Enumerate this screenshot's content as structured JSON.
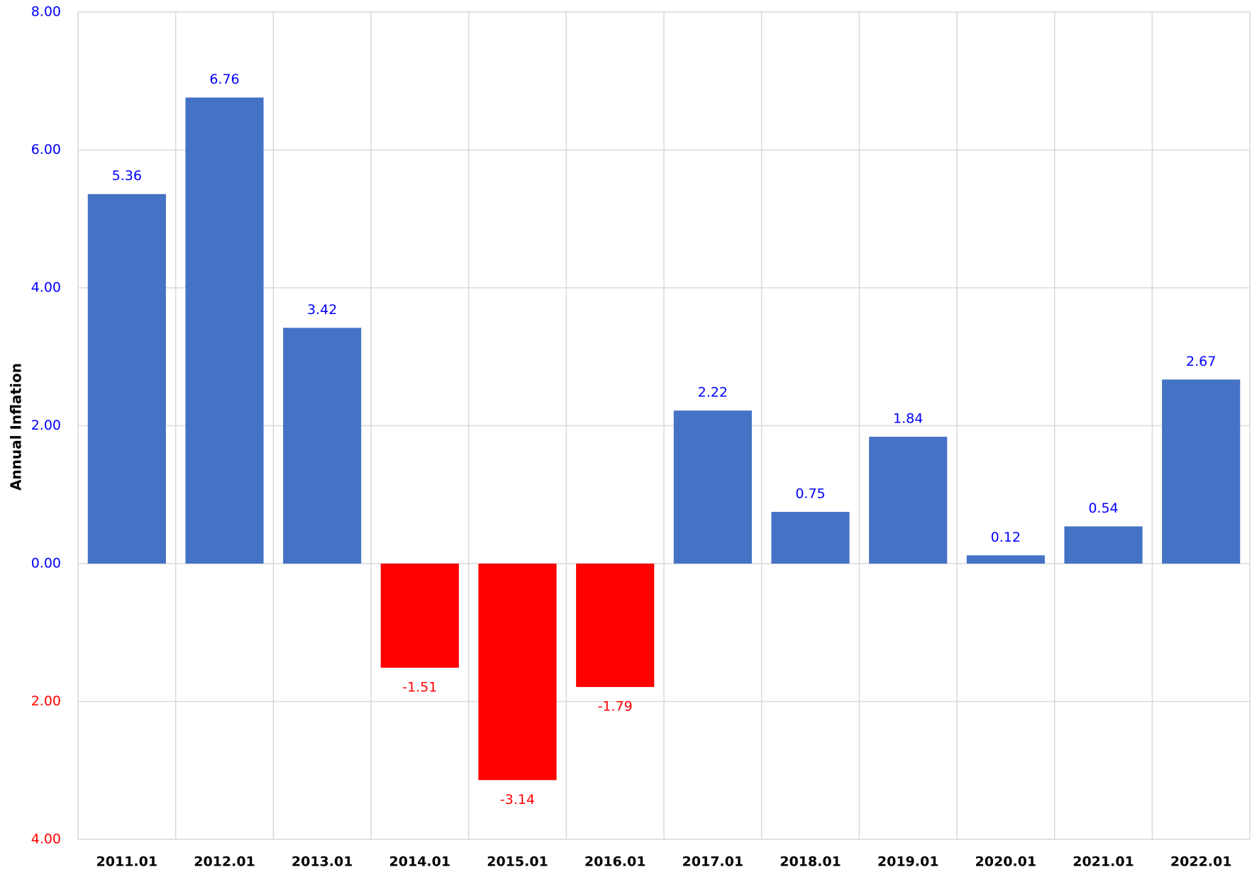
{
  "chart_data": {
    "type": "bar",
    "y_label": "Annual Inflation",
    "categories": [
      "2011.01",
      "2012.01",
      "2013.01",
      "2014.01",
      "2015.01",
      "2016.01",
      "2017.01",
      "2018.01",
      "2019.01",
      "2020.01",
      "2021.01",
      "2022.01"
    ],
    "values": [
      5.36,
      6.76,
      3.42,
      -1.51,
      -3.14,
      -1.79,
      2.22,
      0.75,
      1.84,
      0.12,
      0.54,
      2.67
    ],
    "color": "#4472c4",
    "negative_color": "#ff0000",
    "label_color": "#0000ff",
    "negative_label_color": "#ff0000",
    "ylim": [
      -4,
      8
    ],
    "yticks": [
      {
        "value": -4,
        "label": "4.00"
      },
      {
        "value": -2,
        "label": "2.00"
      },
      {
        "value": 0,
        "label": "0.00"
      },
      {
        "value": 2,
        "label": "2.00"
      },
      {
        "value": 4,
        "label": "4.00"
      },
      {
        "value": 6,
        "label": "6.00"
      },
      {
        "value": 8,
        "label": "8.00"
      }
    ],
    "grid": true
  }
}
